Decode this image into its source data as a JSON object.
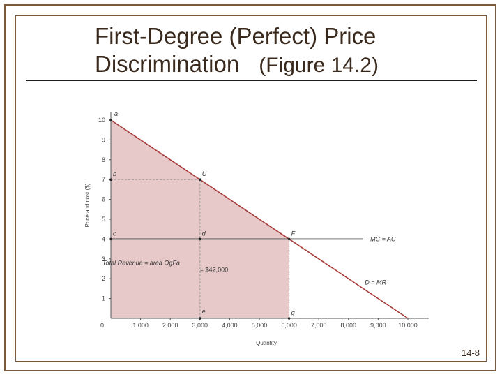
{
  "slide": {
    "title_line1": "First-Degree (Perfect) Price",
    "title_line2": "Discrimination",
    "title_figure": "(Figure 14.2)",
    "slide_number": "14-8"
  },
  "chart_data": {
    "type": "line",
    "xlabel": "Quantity",
    "ylabel": "Price and cost ($)",
    "xlim": [
      0,
      10000
    ],
    "ylim": [
      0,
      10
    ],
    "x_ticks": [
      {
        "value": 0,
        "label": "0"
      },
      {
        "value": 1000,
        "label": "1,000"
      },
      {
        "value": 2000,
        "label": "2,000"
      },
      {
        "value": 3000,
        "label": "3,000"
      },
      {
        "value": 4000,
        "label": "4,000"
      },
      {
        "value": 5000,
        "label": "5,000"
      },
      {
        "value": 6000,
        "label": "6,000"
      },
      {
        "value": 7000,
        "label": "7,000"
      },
      {
        "value": 8000,
        "label": "8,000"
      },
      {
        "value": 9000,
        "label": "9,000"
      },
      {
        "value": 10000,
        "label": "10,000"
      }
    ],
    "y_ticks": [
      {
        "value": 1,
        "label": "1"
      },
      {
        "value": 2,
        "label": "2"
      },
      {
        "value": 3,
        "label": "3"
      },
      {
        "value": 4,
        "label": "4"
      },
      {
        "value": 5,
        "label": "5"
      },
      {
        "value": 6,
        "label": "6"
      },
      {
        "value": 7,
        "label": "7"
      },
      {
        "value": 8,
        "label": "8"
      },
      {
        "value": 9,
        "label": "9"
      },
      {
        "value": 10,
        "label": "10"
      }
    ],
    "series": [
      {
        "name": "D = MR",
        "x": [
          0,
          10000
        ],
        "y": [
          10,
          0
        ],
        "color": "#a83a3a"
      },
      {
        "name": "MC = AC",
        "x": [
          0,
          8500
        ],
        "y": [
          4,
          4
        ],
        "color": "#222222"
      }
    ],
    "shaded_area": {
      "x": [
        0,
        0,
        6000,
        6000
      ],
      "y": [
        0,
        10,
        4,
        0
      ],
      "color": "#e8c9c9"
    },
    "guides": [
      {
        "x1": 0,
        "y1": 7,
        "x2": 3000,
        "y2": 7
      },
      {
        "x1": 3000,
        "y1": 0,
        "x2": 3000,
        "y2": 7
      },
      {
        "x1": 6000,
        "y1": 0,
        "x2": 6000,
        "y2": 4
      }
    ],
    "points": [
      {
        "label": "a",
        "x": 0,
        "y": 10
      },
      {
        "label": "b",
        "x": 0,
        "y": 7
      },
      {
        "label": "c",
        "x": 0,
        "y": 4
      },
      {
        "label": "U",
        "x": 3000,
        "y": 7
      },
      {
        "label": "d",
        "x": 3000,
        "y": 4
      },
      {
        "label": "e",
        "x": 3000,
        "y": 0
      },
      {
        "label": "F",
        "x": 6000,
        "y": 4
      },
      {
        "label": "g",
        "x": 6000,
        "y": 0
      }
    ],
    "annotations": [
      {
        "text": "Total Revenue = area OgFa",
        "x": 1500,
        "y": 2.7
      },
      {
        "text": "= $42,000",
        "x": 3000,
        "y": 2.35
      }
    ]
  },
  "colors": {
    "frame": "#7a5a3a",
    "demand": "#a83a3a",
    "shade": "#e8c9c9",
    "guide": "#9a9a9a"
  }
}
